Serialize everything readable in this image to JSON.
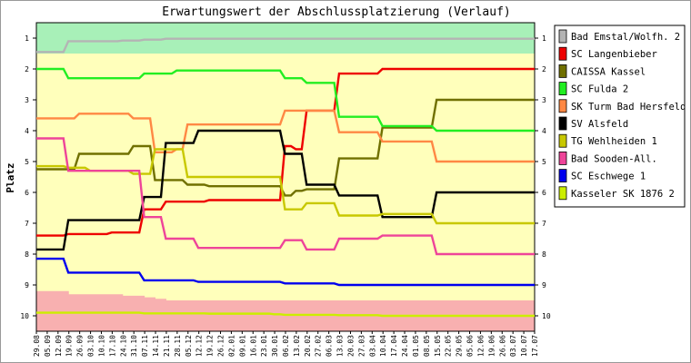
{
  "chart_data": {
    "type": "line",
    "title": "Erwartungswert der Abschlussplatzierung (Verlauf)",
    "ylabel": "Platz",
    "xlabel": "",
    "ylim": [
      10.5,
      0.5
    ],
    "y_ticks": [
      1,
      2,
      3,
      4,
      5,
      6,
      7,
      8,
      9,
      10
    ],
    "y_inverted": true,
    "grid": false,
    "legend_position": "right",
    "x": [
      "29.08",
      "05.09",
      "12.09",
      "19.09",
      "26.09",
      "03.10",
      "10.10",
      "17.10",
      "24.10",
      "31.10",
      "07.11",
      "14.11",
      "21.11",
      "28.11",
      "05.12",
      "12.12",
      "19.12",
      "26.12",
      "02.01",
      "09.01",
      "16.01",
      "23.01",
      "30.01",
      "06.02",
      "13.02",
      "20.02",
      "27.02",
      "06.03",
      "13.03",
      "20.03",
      "27.03",
      "03.04",
      "10.04",
      "17.04",
      "24.04",
      "01.05",
      "08.05",
      "15.05",
      "22.05",
      "29.05",
      "05.06",
      "12.06",
      "19.06",
      "26.06",
      "03.07",
      "10.07",
      "17.07"
    ],
    "bands": [
      {
        "color": "#a8f0b8",
        "from": 0.5,
        "to": [
          1.5,
          1.5,
          1.5,
          1.5,
          1.5,
          1.5,
          1.5,
          1.5,
          1.5,
          1.5,
          1.5,
          1.5,
          1.5,
          1.5,
          1.5,
          1.5,
          1.5,
          1.5,
          1.5,
          1.5,
          1.5,
          1.5,
          1.5,
          1.5,
          1.5,
          1.5,
          1.5,
          1.5,
          1.5,
          1.5,
          1.5,
          1.5,
          1.5,
          1.5,
          1.5,
          1.5,
          1.5,
          1.5,
          1.5,
          1.5,
          1.5,
          1.5,
          1.5,
          1.5,
          1.5,
          1.5,
          1.5
        ]
      },
      {
        "color": "#f8b0b0",
        "from": 10.5,
        "to": [
          9.2,
          9.2,
          9.2,
          9.3,
          9.3,
          9.3,
          9.3,
          9.3,
          9.35,
          9.35,
          9.4,
          9.45,
          9.5,
          9.5,
          9.5,
          9.5,
          9.5,
          9.5,
          9.5,
          9.5,
          9.5,
          9.5,
          9.5,
          9.5,
          9.5,
          9.5,
          9.5,
          9.5,
          9.5,
          9.5,
          9.5,
          9.5,
          9.5,
          9.5,
          9.5,
          9.5,
          9.5,
          9.5,
          9.5,
          9.5,
          9.5,
          9.5,
          9.5,
          9.5,
          9.5,
          9.5,
          9.5
        ]
      }
    ],
    "series": [
      {
        "name": "Bad Emstal/Wolfh. 2",
        "color": "#b4b4b4",
        "values": [
          1.45,
          1.45,
          1.45,
          1.1,
          1.1,
          1.1,
          1.1,
          1.1,
          1.08,
          1.08,
          1.05,
          1.05,
          1.02,
          1.02,
          1.02,
          1.02,
          1.02,
          1.02,
          1.02,
          1.02,
          1.02,
          1.02,
          1.02,
          1.02,
          1.02,
          1.02,
          1.02,
          1.02,
          1.02,
          1.02,
          1.02,
          1.02,
          1.02,
          1.02,
          1.02,
          1.02,
          1.02,
          1.02,
          1.02,
          1.02,
          1.02,
          1.02,
          1.02,
          1.02,
          1.02,
          1.02,
          1.02
        ]
      },
      {
        "name": "SC Langenbieber",
        "color": "#ee0000",
        "values": [
          7.4,
          7.4,
          7.4,
          7.35,
          7.35,
          7.35,
          7.35,
          7.3,
          7.3,
          7.3,
          6.55,
          6.55,
          6.3,
          6.3,
          6.3,
          6.3,
          6.25,
          6.25,
          6.25,
          6.25,
          6.25,
          6.25,
          6.25,
          4.5,
          4.6,
          3.35,
          3.35,
          3.35,
          2.15,
          2.15,
          2.15,
          2.15,
          2.0,
          2.0,
          2.0,
          2.0,
          2.0,
          2.0,
          2.0,
          2.0,
          2.0,
          2.0,
          2.0,
          2.0,
          2.0,
          2.0,
          2.0
        ]
      },
      {
        "name": "CAISSA Kassel",
        "color": "#707000",
        "values": [
          5.25,
          5.25,
          5.25,
          5.25,
          4.75,
          4.75,
          4.75,
          4.75,
          4.75,
          4.5,
          4.5,
          5.6,
          5.6,
          5.6,
          5.75,
          5.75,
          5.8,
          5.8,
          5.8,
          5.8,
          5.8,
          5.8,
          5.8,
          6.1,
          5.95,
          5.9,
          5.9,
          5.9,
          4.9,
          4.9,
          4.9,
          4.9,
          3.9,
          3.9,
          3.9,
          3.9,
          3.9,
          3.0,
          3.0,
          3.0,
          3.0,
          3.0,
          3.0,
          3.0,
          3.0,
          3.0,
          3.0
        ]
      },
      {
        "name": "SC Fulda 2",
        "color": "#22ee22",
        "values": [
          2.0,
          2.0,
          2.0,
          2.3,
          2.3,
          2.3,
          2.3,
          2.3,
          2.3,
          2.3,
          2.15,
          2.15,
          2.15,
          2.05,
          2.05,
          2.05,
          2.05,
          2.05,
          2.05,
          2.05,
          2.05,
          2.05,
          2.05,
          2.3,
          2.3,
          2.45,
          2.45,
          2.45,
          3.55,
          3.55,
          3.55,
          3.55,
          3.85,
          3.85,
          3.85,
          3.85,
          3.85,
          4.0,
          4.0,
          4.0,
          4.0,
          4.0,
          4.0,
          4.0,
          4.0,
          4.0,
          4.0
        ]
      },
      {
        "name": "SK Turm Bad Hersfeld",
        "color": "#ff8844",
        "values": [
          3.6,
          3.6,
          3.6,
          3.6,
          3.45,
          3.45,
          3.45,
          3.45,
          3.45,
          3.6,
          3.6,
          4.7,
          4.7,
          4.6,
          3.8,
          3.8,
          3.8,
          3.8,
          3.8,
          3.8,
          3.8,
          3.8,
          3.8,
          3.35,
          3.35,
          3.35,
          3.35,
          3.35,
          4.05,
          4.05,
          4.05,
          4.05,
          4.35,
          4.35,
          4.35,
          4.35,
          4.35,
          5.0,
          5.0,
          5.0,
          5.0,
          5.0,
          5.0,
          5.0,
          5.0,
          5.0,
          5.0
        ]
      },
      {
        "name": "SV Alsfeld",
        "color": "#000000",
        "values": [
          7.85,
          7.85,
          7.85,
          6.9,
          6.9,
          6.9,
          6.9,
          6.9,
          6.9,
          6.9,
          6.15,
          6.15,
          4.4,
          4.4,
          4.4,
          4.0,
          4.0,
          4.0,
          4.0,
          4.0,
          4.0,
          4.0,
          4.0,
          4.75,
          4.75,
          5.75,
          5.75,
          5.75,
          6.1,
          6.1,
          6.1,
          6.1,
          6.8,
          6.8,
          6.8,
          6.8,
          6.8,
          6.0,
          6.0,
          6.0,
          6.0,
          6.0,
          6.0,
          6.0,
          6.0,
          6.0,
          6.0
        ]
      },
      {
        "name": "TG Wehlheiden 1",
        "color": "#c8c800",
        "values": [
          5.15,
          5.15,
          5.15,
          5.2,
          5.2,
          5.3,
          5.3,
          5.3,
          5.3,
          5.4,
          5.4,
          4.6,
          4.6,
          4.6,
          5.5,
          5.5,
          5.5,
          5.5,
          5.5,
          5.5,
          5.5,
          5.5,
          5.5,
          6.55,
          6.55,
          6.35,
          6.35,
          6.35,
          6.75,
          6.75,
          6.75,
          6.75,
          6.7,
          6.7,
          6.7,
          6.7,
          6.7,
          7.0,
          7.0,
          7.0,
          7.0,
          7.0,
          7.0,
          7.0,
          7.0,
          7.0,
          7.0
        ]
      },
      {
        "name": "Bad Sooden-All.",
        "color": "#ee4499",
        "values": [
          4.25,
          4.25,
          4.25,
          5.3,
          5.3,
          5.3,
          5.3,
          5.3,
          5.3,
          5.3,
          6.8,
          6.8,
          7.5,
          7.5,
          7.5,
          7.8,
          7.8,
          7.8,
          7.8,
          7.8,
          7.8,
          7.8,
          7.8,
          7.55,
          7.55,
          7.85,
          7.85,
          7.85,
          7.5,
          7.5,
          7.5,
          7.5,
          7.4,
          7.4,
          7.4,
          7.4,
          7.4,
          8.0,
          8.0,
          8.0,
          8.0,
          8.0,
          8.0,
          8.0,
          8.0,
          8.0,
          8.0
        ]
      },
      {
        "name": "SC Eschwege 1",
        "color": "#0000ee",
        "values": [
          8.15,
          8.15,
          8.15,
          8.6,
          8.6,
          8.6,
          8.6,
          8.6,
          8.6,
          8.6,
          8.85,
          8.85,
          8.85,
          8.85,
          8.85,
          8.9,
          8.9,
          8.9,
          8.9,
          8.9,
          8.9,
          8.9,
          8.9,
          8.95,
          8.95,
          8.95,
          8.95,
          8.95,
          9.0,
          9.0,
          9.0,
          9.0,
          9.0,
          9.0,
          9.0,
          9.0,
          9.0,
          9.0,
          9.0,
          9.0,
          9.0,
          9.0,
          9.0,
          9.0,
          9.0,
          9.0,
          9.0
        ]
      },
      {
        "name": "Kasseler SK 1876 2",
        "color": "#ccee00",
        "values": [
          9.9,
          9.9,
          9.9,
          9.9,
          9.9,
          9.9,
          9.9,
          9.9,
          9.9,
          9.9,
          9.92,
          9.92,
          9.92,
          9.92,
          9.92,
          9.92,
          9.93,
          9.93,
          9.93,
          9.93,
          9.93,
          9.93,
          9.95,
          9.97,
          9.97,
          9.97,
          9.97,
          9.97,
          9.98,
          9.98,
          9.98,
          9.98,
          10.0,
          10.0,
          10.0,
          10.0,
          10.0,
          10.0,
          10.0,
          10.0,
          10.0,
          10.0,
          10.0,
          10.0,
          10.0,
          10.0,
          10.0
        ]
      }
    ]
  }
}
